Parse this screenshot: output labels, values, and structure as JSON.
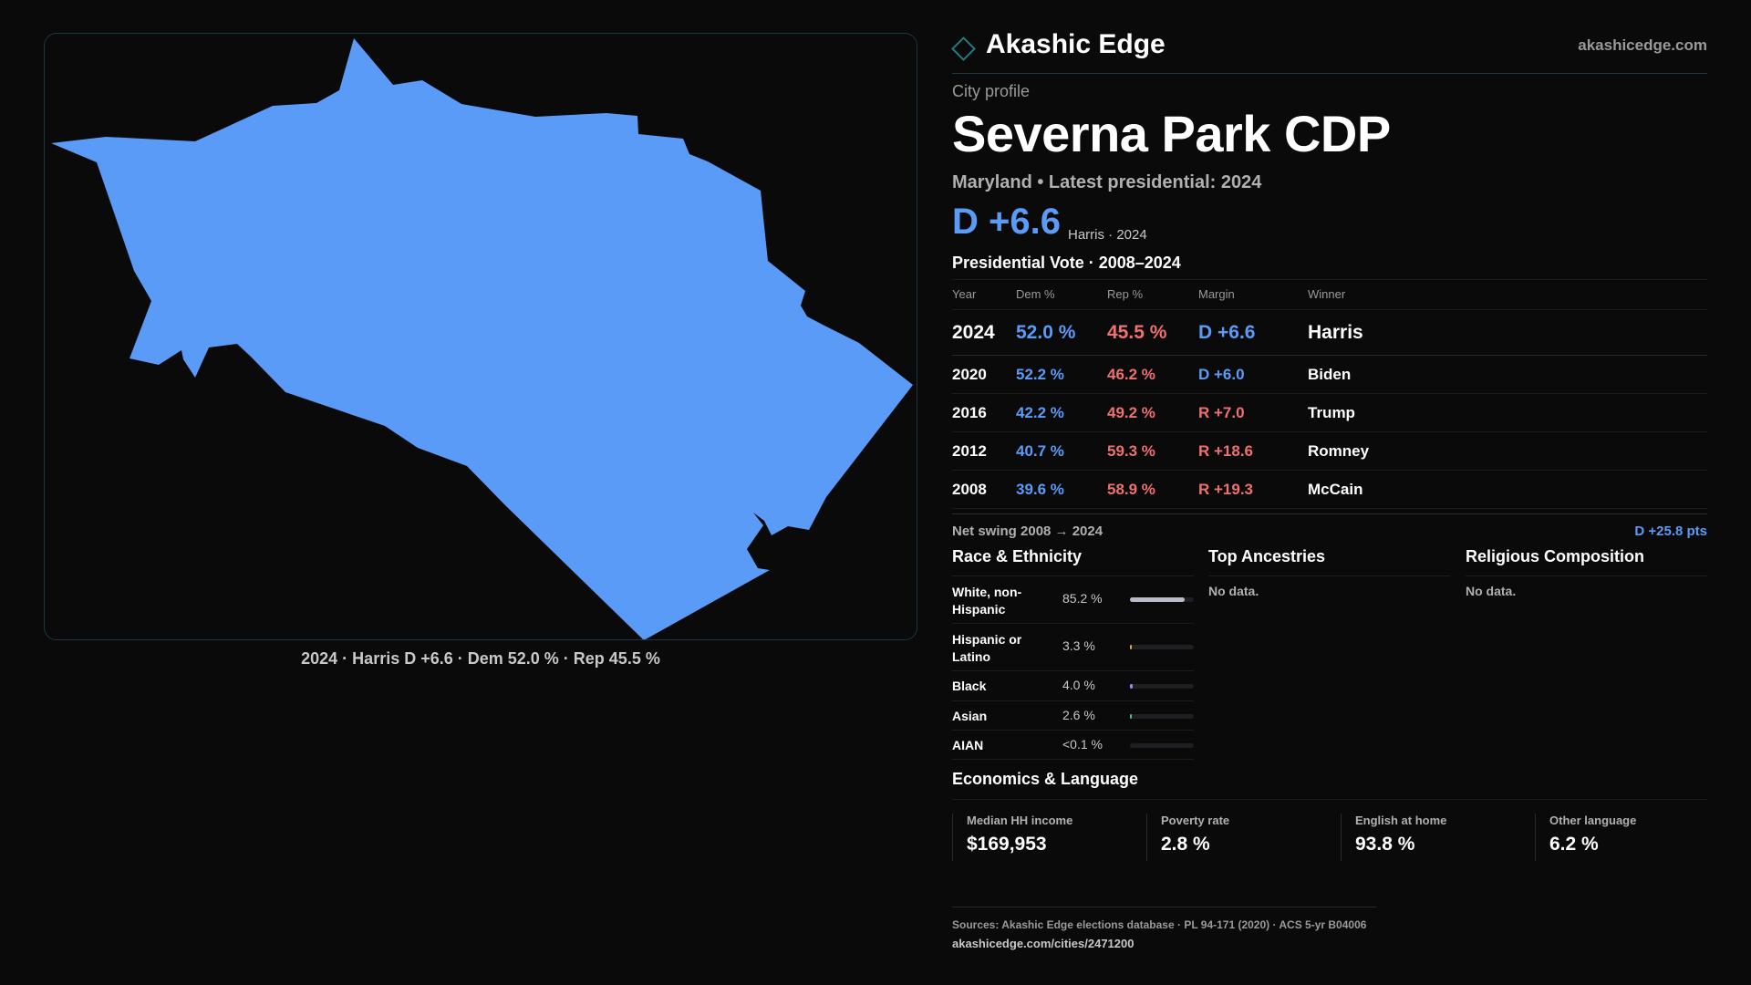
{
  "brand": {
    "name": "Akashic Edge",
    "url": "akashicedge.com"
  },
  "profile": {
    "eyebrow": "City profile",
    "city": "Severna Park CDP",
    "subtitle": "Maryland • Latest presidential: 2024",
    "headline_margin": "D +6.6",
    "headline_note": "Harris · 2024"
  },
  "map": {
    "fill_color": "#5b9bf8",
    "caption": "2024 · Harris D +6.6 · Dem 52.0 % · Rep 45.5 %"
  },
  "vote": {
    "title": "Presidential Vote · 2008–2024",
    "headers": {
      "year": "Year",
      "dem": "Dem %",
      "rep": "Rep %",
      "margin": "Margin",
      "winner": "Winner"
    },
    "rows": [
      {
        "year": "2024",
        "dem": "52.0 %",
        "rep": "45.5 %",
        "margin": "D +6.6",
        "winner": "Harris"
      },
      {
        "year": "2020",
        "dem": "52.2 %",
        "rep": "46.2 %",
        "margin": "D +6.0",
        "winner": "Biden"
      },
      {
        "year": "2016",
        "dem": "42.2 %",
        "rep": "49.2 %",
        "margin": "R +7.0",
        "winner": "Trump"
      },
      {
        "year": "2012",
        "dem": "40.7 %",
        "rep": "59.3 %",
        "margin": "R +18.6",
        "winner": "Romney"
      },
      {
        "year": "2008",
        "dem": "39.6 %",
        "rep": "58.9 %",
        "margin": "R +19.3",
        "winner": "McCain"
      }
    ],
    "swing_label": "Net swing 2008 → 2024",
    "swing_value": "D +25.8 pts"
  },
  "race": {
    "title": "Race & Ethnicity",
    "rows": [
      {
        "label": "White, non-Hispanic",
        "pct": "85.2 %",
        "share": 0.852,
        "color": "#b8bcc6"
      },
      {
        "label": "Hispanic or Latino",
        "pct": "3.3 %",
        "share": 0.033,
        "color": "#e8a23a"
      },
      {
        "label": "Black",
        "pct": "4.0 %",
        "share": 0.04,
        "color": "#9b87f5"
      },
      {
        "label": "Asian",
        "pct": "2.6 %",
        "share": 0.026,
        "color": "#3fbfa0"
      },
      {
        "label": "AIAN",
        "pct": "<0.1 %",
        "share": 0.0,
        "color": "#c86b6b"
      }
    ]
  },
  "ancestries": {
    "title": "Top Ancestries",
    "empty": "No data."
  },
  "religion": {
    "title": "Religious Composition",
    "empty": "No data."
  },
  "economics": {
    "title": "Economics & Language",
    "cards": [
      {
        "label": "Median HH income",
        "value": "$169,953"
      },
      {
        "label": "Poverty rate",
        "value": "2.8 %"
      },
      {
        "label": "English at home",
        "value": "93.8 %"
      },
      {
        "label": "Other language",
        "value": "6.2 %"
      }
    ]
  },
  "footer": {
    "sources": "Sources: Akashic Edge elections database · PL 94-171 (2020) · ACS 5-yr B04006",
    "url": "akashicedge.com/cities/2471200"
  }
}
